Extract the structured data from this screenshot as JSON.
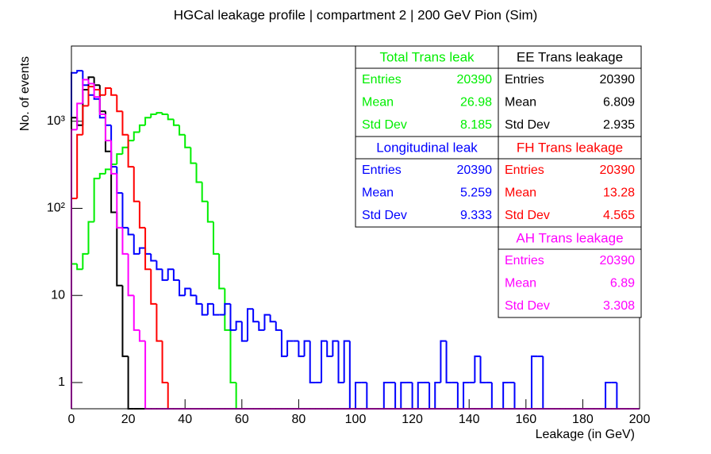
{
  "chart_data": {
    "type": "histogram",
    "title": "HGCal leakage profile | compartment 2 | 200 GeV Pion (Sim)",
    "x_label": "Leakage (in GeV)",
    "y_label": "No. of events",
    "log_y": true,
    "xlim": [
      0,
      200
    ],
    "xticks": [
      0,
      20,
      40,
      60,
      80,
      100,
      120,
      140,
      160,
      180,
      200
    ],
    "ylim": [
      0.5,
      7300
    ],
    "yticks": [
      1,
      10,
      {
        "value": 100,
        "label": "10²"
      },
      {
        "value": 1000,
        "label": "10³"
      }
    ],
    "bins": [
      0,
      2,
      4,
      6,
      8,
      10,
      12,
      14,
      16,
      18,
      20,
      22,
      24,
      26,
      28,
      30,
      32,
      34,
      36,
      38,
      40,
      42,
      44,
      46,
      48,
      50,
      52,
      54,
      56,
      58,
      60,
      62,
      64,
      66,
      68,
      70,
      72,
      74,
      76,
      78,
      80,
      82,
      84,
      86,
      88,
      90,
      92,
      94,
      96,
      98,
      100,
      102,
      104,
      106,
      108,
      110,
      112,
      114,
      116,
      118,
      120,
      122,
      124,
      126,
      128,
      130,
      132,
      134,
      136,
      138,
      140,
      142,
      144,
      146,
      148,
      150,
      152,
      154,
      156,
      158,
      160,
      162,
      164,
      166,
      168,
      170,
      172,
      174,
      176,
      178,
      180,
      182,
      184,
      186,
      188,
      190,
      192,
      194,
      196,
      198,
      200
    ],
    "stat_labels": [
      "Entries",
      "Mean",
      "Std Dev"
    ],
    "series": [
      {
        "name": "Total Trans leak",
        "color": "#00ee00",
        "stats": [
          20390,
          26.98,
          8.185
        ],
        "values": [
          23,
          20,
          30,
          70,
          220,
          250,
          280,
          320,
          420,
          500,
          600,
          750,
          900,
          1100,
          1200,
          1250,
          1200,
          1050,
          900,
          700,
          500,
          330,
          200,
          120,
          70,
          30,
          12,
          4,
          1,
          0,
          0,
          0,
          0,
          0,
          0,
          0,
          0,
          0,
          0,
          0,
          0,
          0,
          0,
          0,
          0,
          0,
          0,
          0,
          0,
          0,
          0,
          0,
          0,
          0,
          0,
          0,
          0,
          0,
          0,
          0,
          0,
          0,
          0,
          0,
          0,
          0,
          0,
          0,
          0,
          0,
          0,
          0,
          0,
          0,
          0,
          0,
          0,
          0,
          0,
          0,
          0,
          0,
          0,
          0,
          0,
          0,
          0,
          0,
          0,
          0,
          0,
          0,
          0,
          0,
          0,
          0,
          0,
          0,
          0,
          0
        ]
      },
      {
        "name": "Longitudinal leak",
        "color": "#0000ff",
        "stats": [
          20390,
          5.259,
          9.333
        ],
        "values": [
          3600,
          3800,
          2600,
          2000,
          1800,
          1100,
          900,
          300,
          150,
          60,
          50,
          30,
          35,
          30,
          25,
          20,
          15,
          20,
          15,
          10,
          12,
          10,
          8,
          6,
          8,
          6,
          6,
          8,
          4,
          5,
          3,
          7,
          5,
          4,
          6,
          5,
          4,
          2,
          3,
          3,
          2,
          3,
          1,
          1,
          3,
          2,
          3,
          1,
          3,
          0,
          1,
          1,
          0,
          0,
          0,
          1,
          1,
          0,
          1,
          1,
          0,
          1,
          1,
          0,
          1,
          3,
          1,
          1,
          0,
          1,
          1,
          2,
          1,
          1,
          0,
          0,
          1,
          1,
          0,
          0,
          0,
          2,
          2,
          0,
          0,
          0,
          0,
          0,
          0,
          0,
          0,
          0,
          0,
          0,
          1,
          1,
          0,
          0,
          0,
          0
        ]
      },
      {
        "name": "EE Trans leakage",
        "color": "#000000",
        "stats": [
          20390,
          6.809,
          2.935
        ],
        "values": [
          1100,
          900,
          2300,
          3200,
          2600,
          1300,
          450,
          90,
          13,
          2,
          0,
          0,
          0,
          0,
          0,
          0,
          0,
          0,
          0,
          0,
          0,
          0,
          0,
          0,
          0,
          0,
          0,
          0,
          0,
          0,
          0,
          0,
          0,
          0,
          0,
          0,
          0,
          0,
          0,
          0,
          0,
          0,
          0,
          0,
          0,
          0,
          0,
          0,
          0,
          0,
          0,
          0,
          0,
          0,
          0,
          0,
          0,
          0,
          0,
          0,
          0,
          0,
          0,
          0,
          0,
          0,
          0,
          0,
          0,
          0,
          0,
          0,
          0,
          0,
          0,
          0,
          0,
          0,
          0,
          0,
          0,
          0,
          0,
          0,
          0,
          0,
          0,
          0,
          0,
          0,
          0,
          0,
          0,
          0,
          0,
          0,
          0,
          0,
          0,
          0
        ]
      },
      {
        "name": "FH Trans leakage",
        "color": "#ff0000",
        "stats": [
          20390,
          13.28,
          4.565
        ],
        "values": [
          130,
          700,
          1500,
          2500,
          2300,
          2000,
          2400,
          2000,
          1300,
          700,
          300,
          120,
          60,
          20,
          8,
          3,
          1,
          0,
          0,
          0,
          0,
          0,
          0,
          0,
          0,
          0,
          0,
          0,
          0,
          0,
          0,
          0,
          0,
          0,
          0,
          0,
          0,
          0,
          0,
          0,
          0,
          0,
          0,
          0,
          0,
          0,
          0,
          0,
          0,
          0,
          0,
          0,
          0,
          0,
          0,
          0,
          0,
          0,
          0,
          0,
          0,
          0,
          0,
          0,
          0,
          0,
          0,
          0,
          0,
          0,
          0,
          0,
          0,
          0,
          0,
          0,
          0,
          0,
          0,
          0,
          0,
          0,
          0,
          0,
          0,
          0,
          0,
          0,
          0,
          0,
          0,
          0,
          0,
          0,
          0,
          0,
          0,
          0,
          0,
          0
        ]
      },
      {
        "name": "AH Trans leakage",
        "color": "#ff00ff",
        "stats": [
          20390,
          6.89,
          3.308
        ],
        "values": [
          800,
          1600,
          3000,
          2700,
          1900,
          1200,
          600,
          250,
          60,
          30,
          10,
          4,
          3,
          0,
          0,
          0,
          0,
          0,
          0,
          0,
          0,
          0,
          0,
          0,
          0,
          0,
          0,
          0,
          0,
          0,
          0,
          0,
          0,
          0,
          0,
          0,
          0,
          0,
          0,
          0,
          0,
          0,
          0,
          0,
          0,
          0,
          0,
          0,
          0,
          0,
          0,
          0,
          0,
          0,
          0,
          0,
          0,
          0,
          0,
          0,
          0,
          0,
          0,
          0,
          0,
          0,
          0,
          0,
          0,
          0,
          0,
          0,
          0,
          0,
          0,
          0,
          0,
          0,
          0,
          0,
          0,
          0,
          0,
          0,
          0,
          0,
          0,
          0,
          0,
          0,
          0,
          0,
          0,
          0,
          0,
          0,
          0,
          0,
          0,
          0
        ]
      }
    ]
  }
}
